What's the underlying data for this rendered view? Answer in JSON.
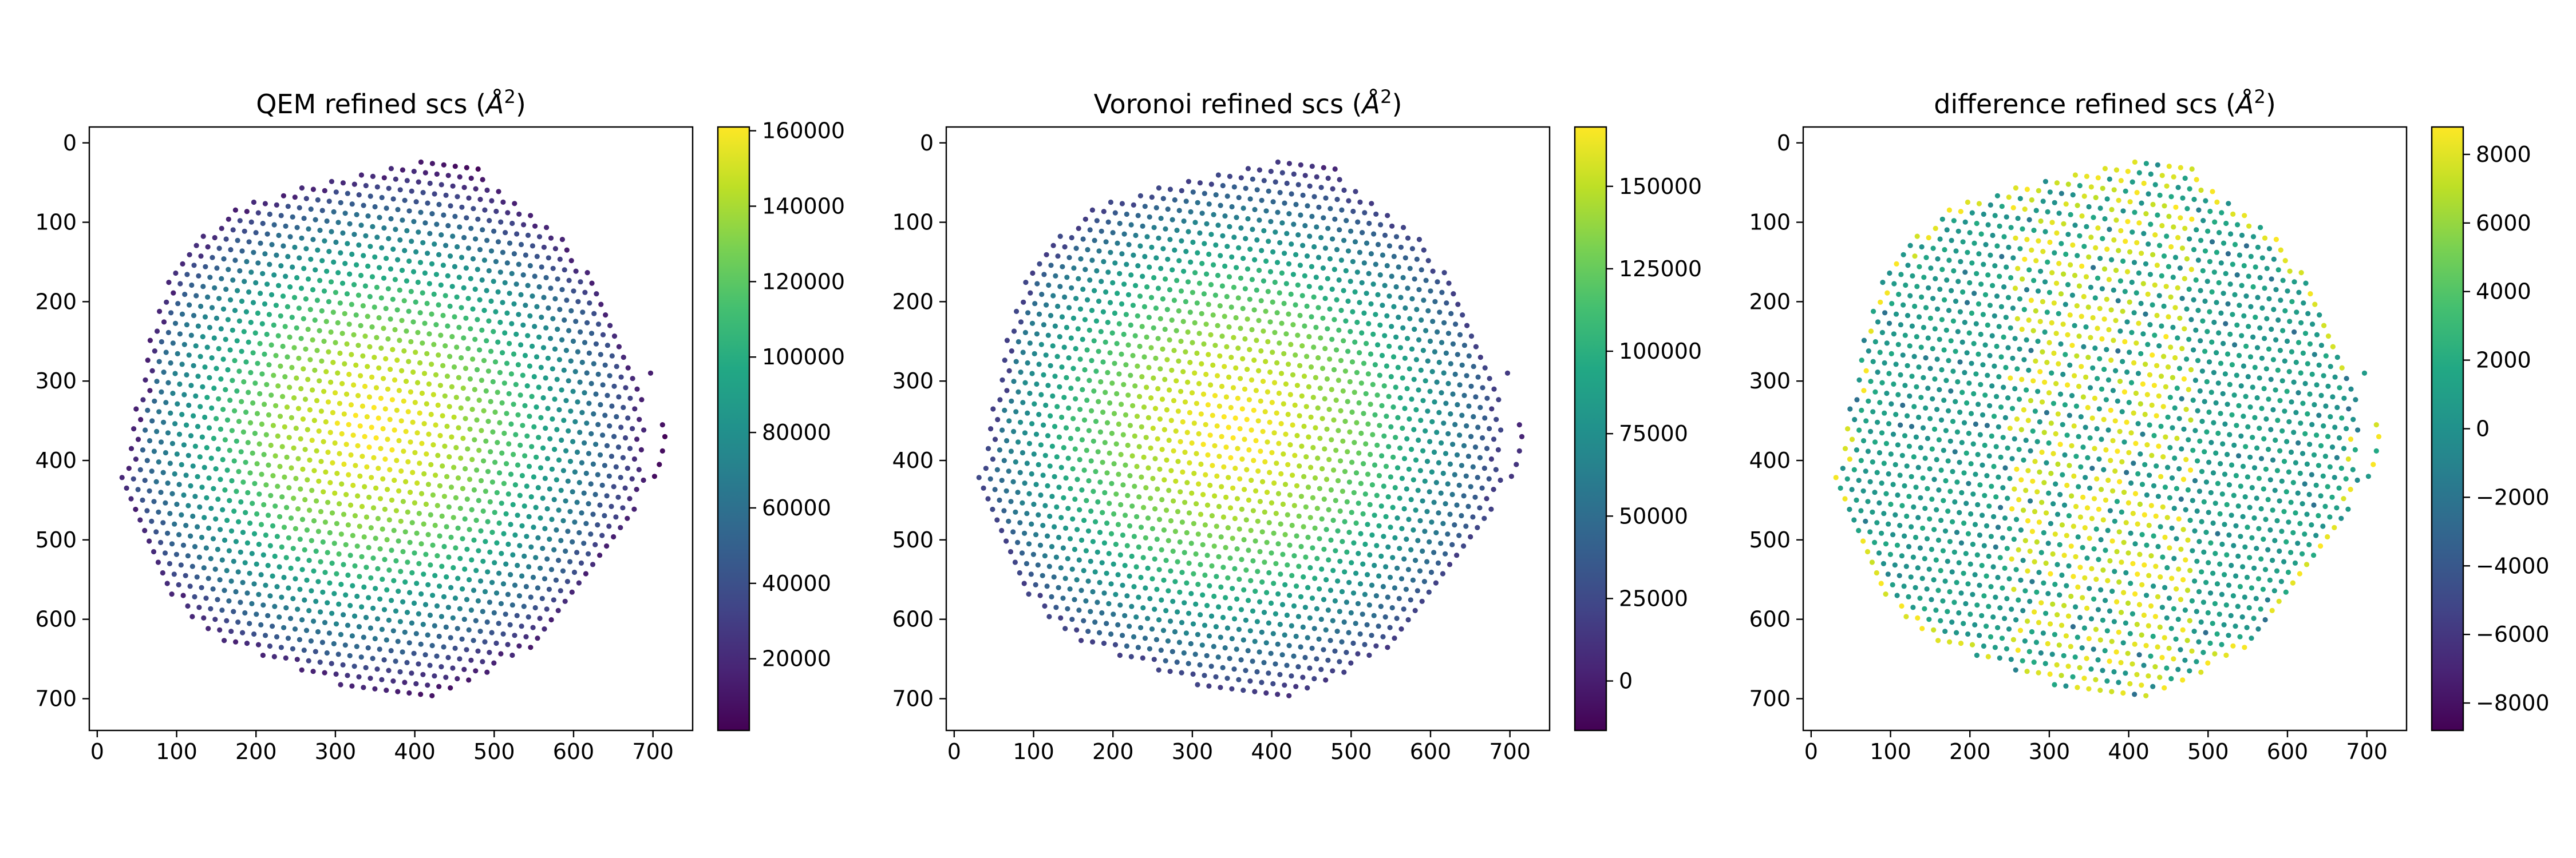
{
  "chart_data": [
    {
      "type": "scatter",
      "title": "QEM refined scs (Å²)",
      "title_main": "QEM refined scs (",
      "title_unit": "Å",
      "title_exp": "2",
      "title_close": ")",
      "xlim": [
        -10,
        750
      ],
      "ylim": [
        740,
        -20
      ],
      "xticks": [
        0,
        100,
        200,
        300,
        400,
        500,
        600,
        700
      ],
      "yticks": [
        0,
        100,
        200,
        300,
        400,
        500,
        600,
        700
      ],
      "colormap": "viridis",
      "colorbar": {
        "min": 1000,
        "max": 161000,
        "ticks": [
          20000,
          40000,
          60000,
          80000,
          100000,
          120000,
          140000,
          160000
        ]
      },
      "center": [
        350,
        360
      ],
      "grid": false
    },
    {
      "type": "scatter",
      "title": "Voronoi refined scs (Å²)",
      "title_main": "Voronoi refined scs (",
      "title_unit": "Å",
      "title_exp": "2",
      "title_close": ")",
      "xlim": [
        -10,
        750
      ],
      "ylim": [
        740,
        -20
      ],
      "xticks": [
        0,
        100,
        200,
        300,
        400,
        500,
        600,
        700
      ],
      "yticks": [
        0,
        100,
        200,
        300,
        400,
        500,
        600,
        700
      ],
      "colormap": "viridis",
      "colorbar": {
        "min": -15000,
        "max": 168000,
        "ticks": [
          0,
          25000,
          50000,
          75000,
          100000,
          125000,
          150000
        ]
      },
      "center": [
        350,
        360
      ],
      "grid": false
    },
    {
      "type": "scatter",
      "title": "difference refined scs (Å²)",
      "title_main": "difference refined scs (",
      "title_unit": "Å",
      "title_exp": "2",
      "title_close": ")",
      "xlim": [
        -10,
        750
      ],
      "ylim": [
        740,
        -20
      ],
      "xticks": [
        0,
        100,
        200,
        300,
        400,
        500,
        600,
        700
      ],
      "yticks": [
        0,
        100,
        200,
        300,
        400,
        500,
        600,
        700
      ],
      "colormap": "viridis",
      "colorbar": {
        "min": -8800,
        "max": 8800,
        "ticks": [
          -8000,
          -6000,
          -4000,
          -2000,
          0,
          2000,
          4000,
          6000,
          8000
        ]
      },
      "center": [
        350,
        360
      ],
      "grid": false
    }
  ]
}
